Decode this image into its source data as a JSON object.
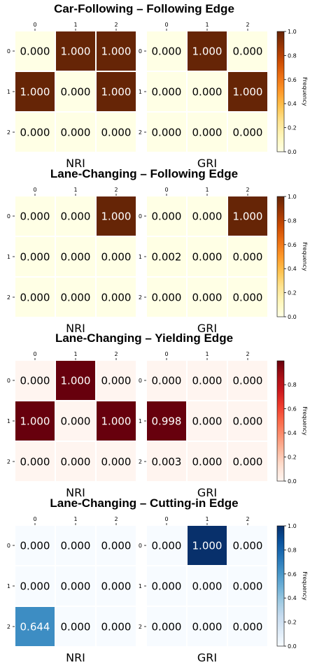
{
  "chart_data": [
    {
      "type": "heatmap",
      "title": "Car-Following – Following Edge",
      "colormap": "YlOrBr",
      "colorbar": {
        "label": "Frequency",
        "range": [
          0,
          1
        ],
        "ticks": [
          "0.0",
          "0.2",
          "0.4",
          "0.6",
          "0.8",
          "1.0"
        ]
      },
      "x_ticks": [
        "0",
        "1",
        "2"
      ],
      "y_ticks": [
        "0",
        "1",
        "2"
      ],
      "panels": [
        {
          "label": "NRI",
          "values": [
            [
              0.0,
              1.0,
              1.0
            ],
            [
              1.0,
              0.0,
              1.0
            ],
            [
              0.0,
              0.0,
              0.0
            ]
          ],
          "labels": [
            [
              "0.000",
              "1.000",
              "1.000"
            ],
            [
              "1.000",
              "0.000",
              "1.000"
            ],
            [
              "0.000",
              "0.000",
              "0.000"
            ]
          ]
        },
        {
          "label": "GRI",
          "values": [
            [
              0.0,
              1.0,
              0.0
            ],
            [
              0.0,
              0.0,
              1.0
            ],
            [
              0.0,
              0.0,
              0.0
            ]
          ],
          "labels": [
            [
              "0.000",
              "1.000",
              "0.000"
            ],
            [
              "0.000",
              "0.000",
              "1.000"
            ],
            [
              "0.000",
              "0.000",
              "0.000"
            ]
          ]
        }
      ]
    },
    {
      "type": "heatmap",
      "title": "Lane-Changing – Following Edge",
      "colormap": "YlOrBr",
      "colorbar": {
        "label": "Frequency",
        "range": [
          0,
          1
        ],
        "ticks": [
          "0.0",
          "0.2",
          "0.4",
          "0.6",
          "0.8",
          "1.0"
        ]
      },
      "x_ticks": [
        "0",
        "1",
        "2"
      ],
      "y_ticks": [
        "0",
        "1",
        "2"
      ],
      "panels": [
        {
          "label": "NRI",
          "values": [
            [
              0.0,
              0.0,
              1.0
            ],
            [
              0.0,
              0.0,
              0.0
            ],
            [
              0.0,
              0.0,
              0.0
            ]
          ],
          "labels": [
            [
              "0.000",
              "0.000",
              "1.000"
            ],
            [
              "0.000",
              "0.000",
              "0.000"
            ],
            [
              "0.000",
              "0.000",
              "0.000"
            ]
          ]
        },
        {
          "label": "GRI",
          "values": [
            [
              0.0,
              0.0,
              1.0
            ],
            [
              0.002,
              0.0,
              0.0
            ],
            [
              0.0,
              0.0,
              0.0
            ]
          ],
          "labels": [
            [
              "0.000",
              "0.000",
              "1.000"
            ],
            [
              "0.002",
              "0.000",
              "0.000"
            ],
            [
              "0.000",
              "0.000",
              "0.000"
            ]
          ]
        }
      ]
    },
    {
      "type": "heatmap",
      "title": "Lane-Changing – Yielding Edge",
      "colormap": "Reds",
      "colorbar": {
        "label": "Frequency",
        "range": [
          0,
          0.998
        ],
        "ticks": [
          "0.0",
          "0.2",
          "0.4",
          "0.6",
          "0.8"
        ]
      },
      "x_ticks": [
        "0",
        "1",
        "2"
      ],
      "y_ticks": [
        "0",
        "1",
        "2"
      ],
      "panels": [
        {
          "label": "NRI",
          "values": [
            [
              0.0,
              1.0,
              0.0
            ],
            [
              1.0,
              0.0,
              1.0
            ],
            [
              0.0,
              0.0,
              0.0
            ]
          ],
          "labels": [
            [
              "0.000",
              "1.000",
              "0.000"
            ],
            [
              "1.000",
              "0.000",
              "1.000"
            ],
            [
              "0.000",
              "0.000",
              "0.000"
            ]
          ]
        },
        {
          "label": "GRI",
          "values": [
            [
              0.0,
              0.0,
              0.0
            ],
            [
              0.998,
              0.0,
              0.0
            ],
            [
              0.003,
              0.0,
              0.0
            ]
          ],
          "labels": [
            [
              "0.000",
              "0.000",
              "0.000"
            ],
            [
              "0.998",
              "0.000",
              "0.000"
            ],
            [
              "0.003",
              "0.000",
              "0.000"
            ]
          ]
        }
      ]
    },
    {
      "type": "heatmap",
      "title": "Lane-Changing – Cutting-in Edge",
      "colormap": "Blues",
      "colorbar": {
        "label": "Frequency",
        "range": [
          0,
          1
        ],
        "ticks": [
          "0.0",
          "0.2",
          "0.4",
          "0.6",
          "0.8",
          "1.0"
        ]
      },
      "x_ticks": [
        "0",
        "1",
        "2"
      ],
      "y_ticks": [
        "0",
        "1",
        "2"
      ],
      "panels": [
        {
          "label": "NRI",
          "values": [
            [
              0.0,
              0.0,
              0.0
            ],
            [
              0.0,
              0.0,
              0.0
            ],
            [
              0.644,
              0.0,
              0.0
            ]
          ],
          "labels": [
            [
              "0.000",
              "0.000",
              "0.000"
            ],
            [
              "0.000",
              "0.000",
              "0.000"
            ],
            [
              "0.644",
              "0.000",
              "0.000"
            ]
          ]
        },
        {
          "label": "GRI",
          "values": [
            [
              0.0,
              1.0,
              0.0
            ],
            [
              0.0,
              0.0,
              0.0
            ],
            [
              0.0,
              0.0,
              0.0
            ]
          ],
          "labels": [
            [
              "0.000",
              "1.000",
              "0.000"
            ],
            [
              "0.000",
              "0.000",
              "0.000"
            ],
            [
              "0.000",
              "0.000",
              "0.000"
            ]
          ]
        }
      ]
    }
  ],
  "colormaps": {
    "YlOrBr": [
      "#ffffe5",
      "#fff7bc",
      "#fee391",
      "#fec44f",
      "#fe9929",
      "#ec7014",
      "#cc4c02",
      "#993404",
      "#662506"
    ],
    "Reds": [
      "#fff5f0",
      "#fee0d2",
      "#fcbba1",
      "#fc9272",
      "#fb6a4a",
      "#ef3b2c",
      "#cb181d",
      "#a50f15",
      "#67000d"
    ],
    "Blues": [
      "#f7fbff",
      "#deebf7",
      "#c6dbef",
      "#9ecae1",
      "#6baed6",
      "#4292c6",
      "#2171b5",
      "#08519c",
      "#08306b"
    ]
  }
}
